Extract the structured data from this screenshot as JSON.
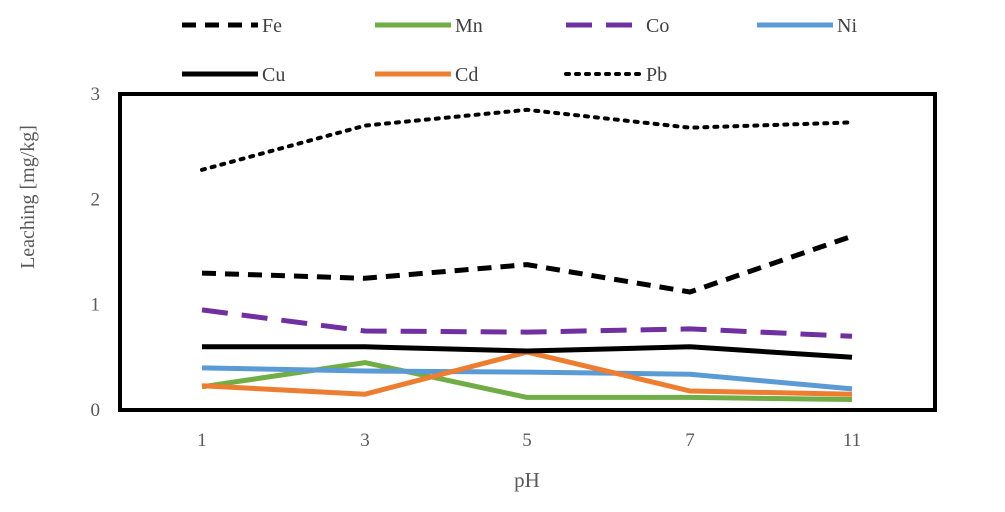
{
  "chart_data": {
    "type": "line",
    "title": "",
    "xlabel": "pH",
    "ylabel": "Leaching [mg/kg]",
    "categories": [
      "1",
      "3",
      "5",
      "7",
      "11"
    ],
    "ylim": [
      0,
      3
    ],
    "yticks": [
      "0",
      "1",
      "2",
      "3"
    ],
    "grid": false,
    "legend_position": "top",
    "series": [
      {
        "name": "Fe",
        "values": [
          1.3,
          1.25,
          1.38,
          1.12,
          1.65
        ],
        "color": "#000000",
        "style": "dash"
      },
      {
        "name": "Mn",
        "values": [
          0.22,
          0.45,
          0.12,
          0.12,
          0.1
        ],
        "color": "#70ad47",
        "style": "solid"
      },
      {
        "name": "Co",
        "values": [
          0.95,
          0.75,
          0.74,
          0.77,
          0.7
        ],
        "color": "#7030a0",
        "style": "longdash"
      },
      {
        "name": "Ni",
        "values": [
          0.4,
          0.37,
          0.36,
          0.34,
          0.2
        ],
        "color": "#5b9bd5",
        "style": "solid"
      },
      {
        "name": "Cu",
        "values": [
          0.6,
          0.6,
          0.56,
          0.6,
          0.5
        ],
        "color": "#000000",
        "style": "solid"
      },
      {
        "name": "Cd",
        "values": [
          0.23,
          0.15,
          0.55,
          0.18,
          0.15
        ],
        "color": "#ed7d31",
        "style": "solid"
      },
      {
        "name": "Pb",
        "values": [
          2.28,
          2.7,
          2.85,
          2.68,
          2.73
        ],
        "color": "#000000",
        "style": "dot"
      }
    ]
  }
}
